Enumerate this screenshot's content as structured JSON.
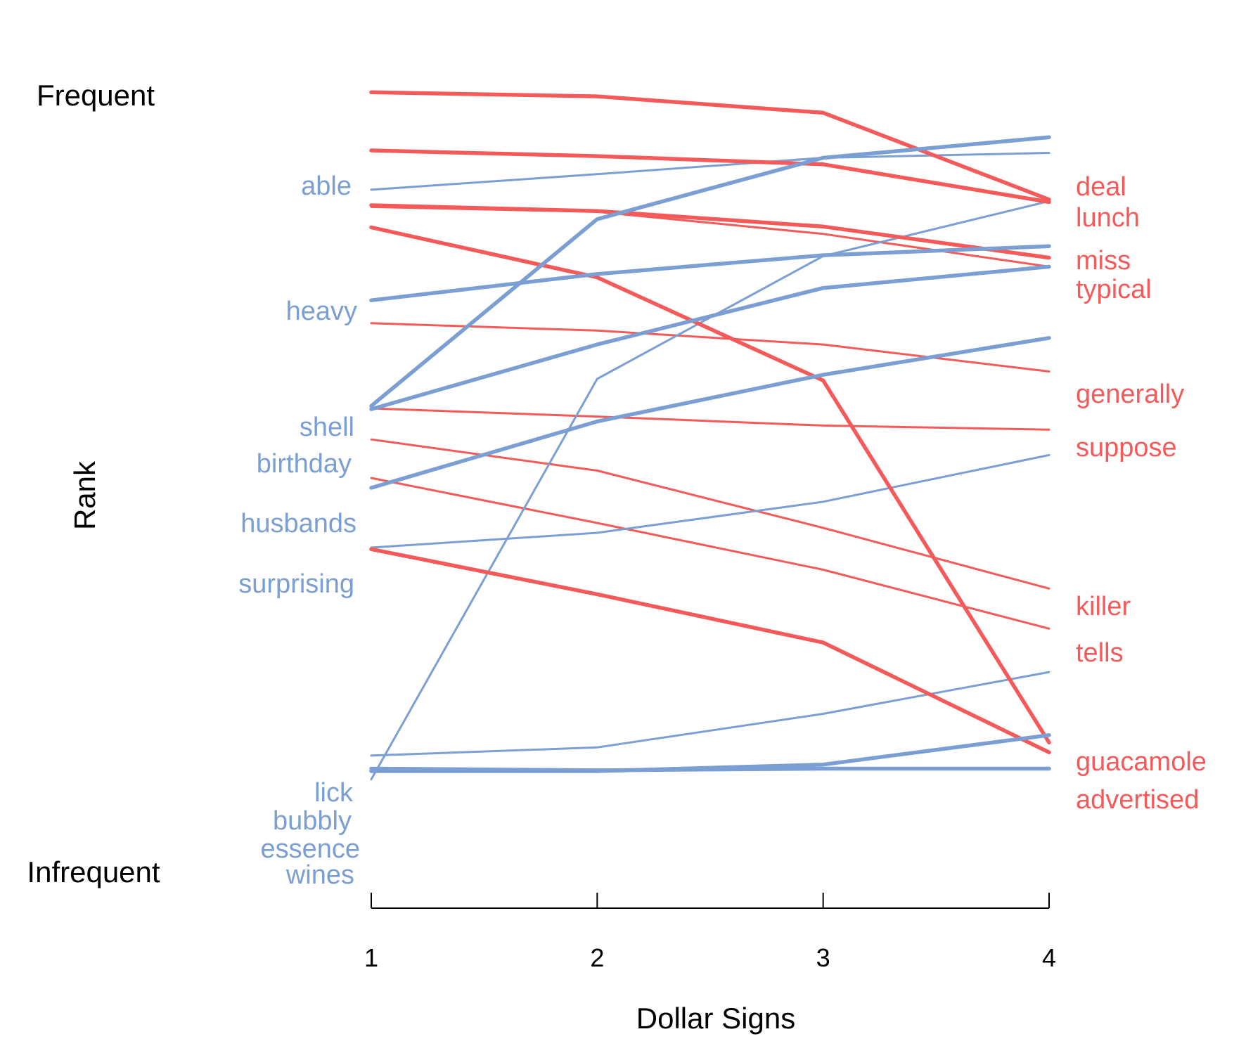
{
  "chart_data": {
    "type": "line",
    "title": "",
    "xlabel": "Dollar Signs",
    "ylabel": "Rank",
    "x": [
      1,
      2,
      3,
      4
    ],
    "xlim": [
      1,
      4
    ],
    "ylim": [
      0,
      1000
    ],
    "y_direction": "rank, higher value = more frequent",
    "ytick_labels": {
      "top": "Frequent",
      "bottom": "Infrequent"
    },
    "grid": false,
    "legend": "none",
    "colors": {
      "decreasing": "#f55a5a",
      "increasing": "#7b9fd2"
    },
    "series": [
      {
        "name": "deal",
        "group": "decreasing",
        "thick": true,
        "values": [
          956,
          951,
          931,
          825
        ]
      },
      {
        "name": "lunch",
        "group": "decreasing",
        "thick": true,
        "values": [
          885,
          878,
          868,
          822
        ]
      },
      {
        "name": "miss",
        "group": "decreasing",
        "thick": true,
        "values": [
          818,
          811,
          792,
          754
        ]
      },
      {
        "name": "typical",
        "group": "decreasing",
        "thick": false,
        "values": [
          816,
          810,
          783,
          743
        ]
      },
      {
        "name": "guacamole",
        "group": "decreasing",
        "thick": true,
        "values": [
          791,
          730,
          604,
          162
        ]
      },
      {
        "name": "generally",
        "group": "decreasing",
        "thick": false,
        "values": [
          674,
          665,
          648,
          615
        ]
      },
      {
        "name": "suppose",
        "group": "decreasing",
        "thick": false,
        "values": [
          570,
          560,
          549,
          544
        ]
      },
      {
        "name": "killer",
        "group": "decreasing",
        "thick": false,
        "values": [
          532,
          494,
          424,
          350
        ]
      },
      {
        "name": "tells",
        "group": "decreasing",
        "thick": false,
        "values": [
          485,
          430,
          373,
          301
        ]
      },
      {
        "name": "advertised",
        "group": "decreasing",
        "thick": true,
        "values": [
          398,
          343,
          284,
          150
        ]
      },
      {
        "name": "able",
        "group": "increasing",
        "thick": false,
        "values": [
          837,
          856,
          876,
          882
        ]
      },
      {
        "name": "heavy",
        "group": "increasing",
        "thick": true,
        "values": [
          702,
          734,
          757,
          768
        ]
      },
      {
        "name": "shell",
        "group": "increasing",
        "thick": true,
        "values": [
          573,
          801,
          876,
          901
        ]
      },
      {
        "name": "birthday",
        "group": "increasing",
        "thick": true,
        "values": [
          569,
          648,
          717,
          743
        ]
      },
      {
        "name": "husbands",
        "group": "increasing",
        "thick": true,
        "values": [
          473,
          554,
          611,
          656
        ]
      },
      {
        "name": "surprising",
        "group": "increasing",
        "thick": false,
        "values": [
          400,
          418,
          456,
          513
        ]
      },
      {
        "name": "lick",
        "group": "increasing",
        "thick": false,
        "values": [
          146,
          156,
          197,
          248
        ]
      },
      {
        "name": "bubbly",
        "group": "increasing",
        "thick": true,
        "values": [
          127,
          127,
          135,
          171
        ]
      },
      {
        "name": "essence",
        "group": "increasing",
        "thick": false,
        "values": [
          117,
          606,
          756,
          823
        ]
      },
      {
        "name": "wines",
        "group": "increasing",
        "thick": true,
        "values": [
          130,
          128,
          130,
          130
        ]
      }
    ]
  }
}
